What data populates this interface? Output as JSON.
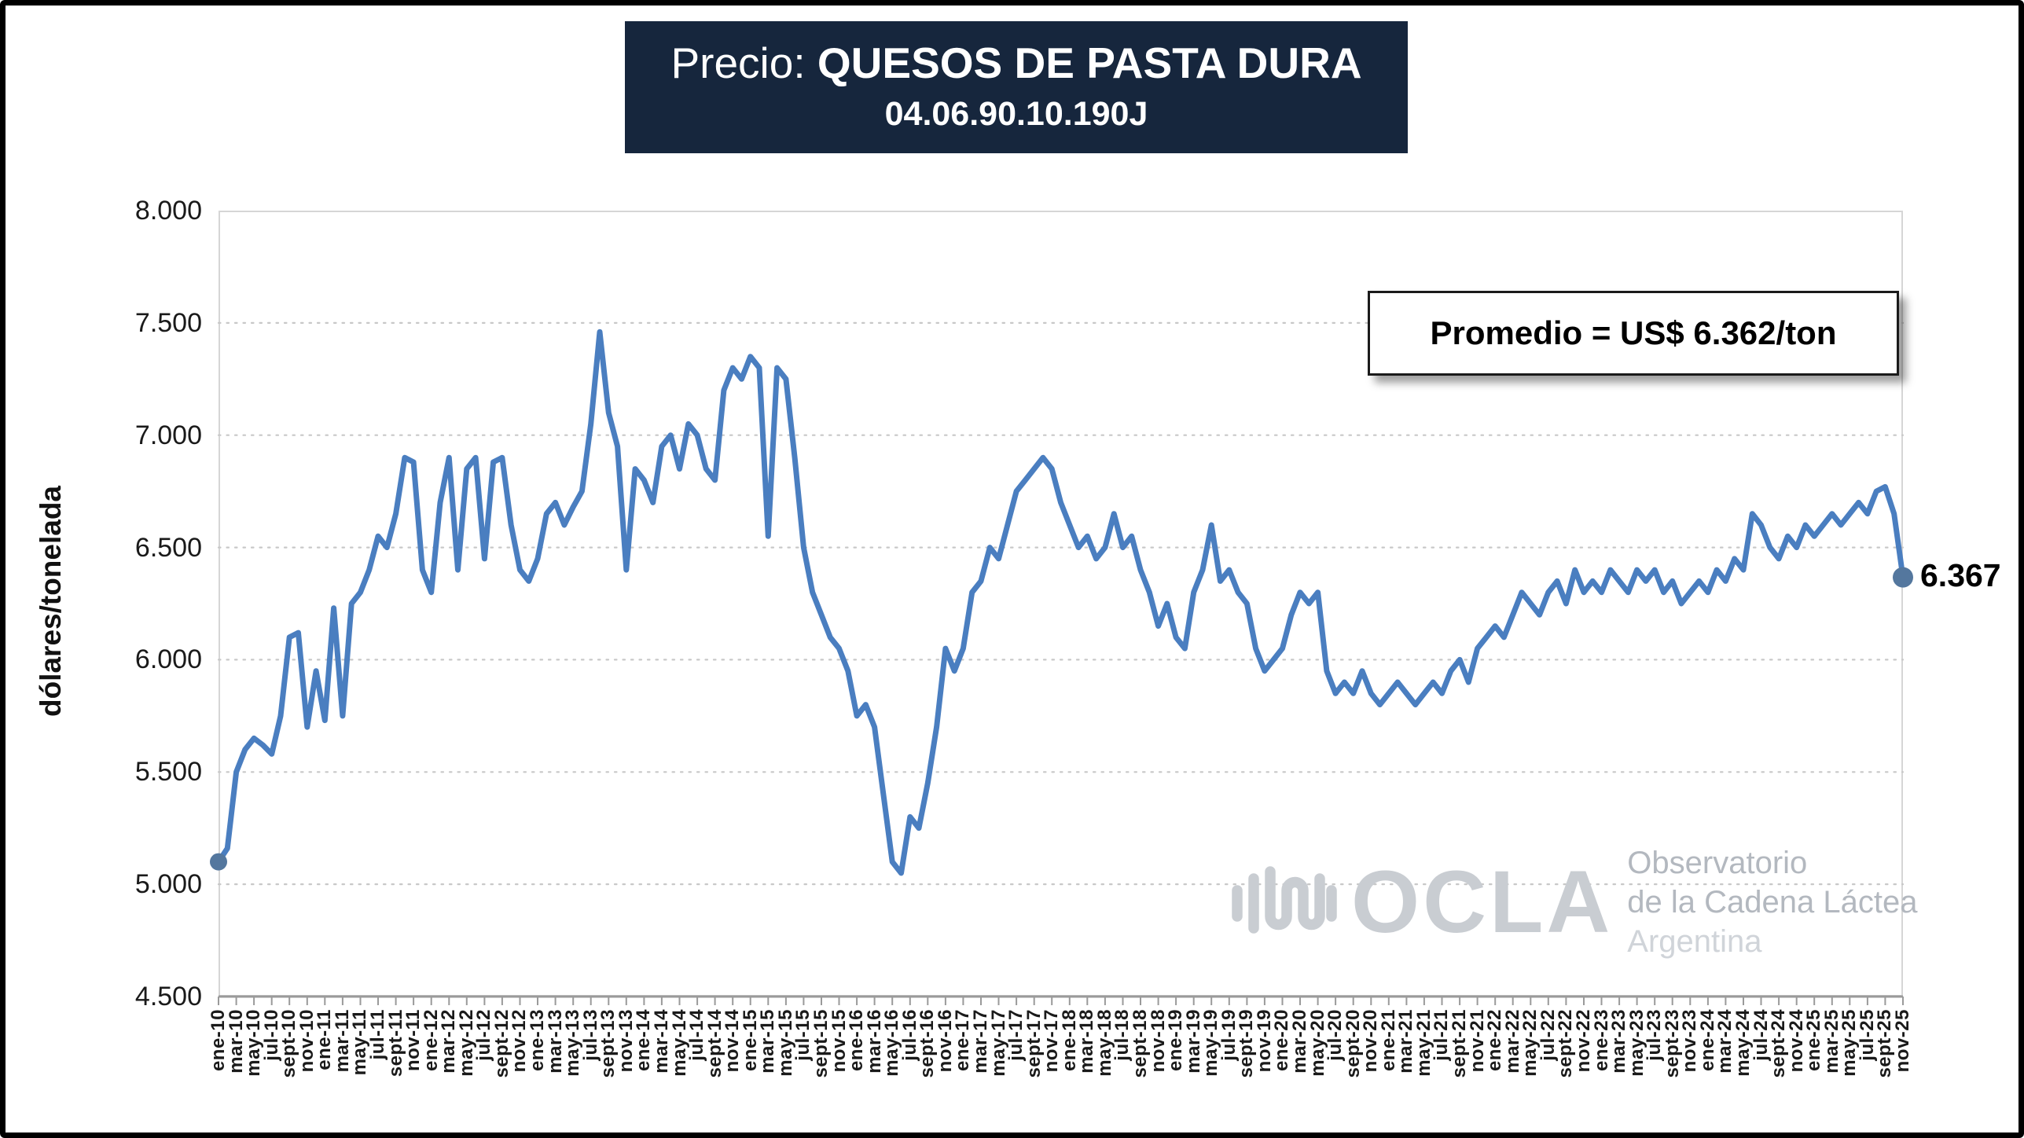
{
  "header": {
    "title_prefix": "Precio: ",
    "title_main": "QUESOS DE PASTA DURA",
    "code": "04.06.90.10.190J"
  },
  "annotation": {
    "promedio": "Promedio = US$ 6.362/ton"
  },
  "watermark": {
    "logo": "OCLA",
    "line1": "Observatorio",
    "line2": "de la Cadena Láctea",
    "line3": "Argentina"
  },
  "colors": {
    "title_bg": "#16263d",
    "line": "#4a7ec0",
    "marker": "#54779e",
    "grid": "#c8c8c8"
  },
  "chart_data": {
    "type": "line",
    "title": "Precio: QUESOS DE PASTA DURA 04.06.90.10.190J",
    "ylabel": "dólares/tonelada",
    "xlabel": "",
    "ylim": [
      4500,
      8000
    ],
    "y_ticks": [
      8000,
      7500,
      7000,
      6500,
      6000,
      5500,
      5000,
      4500
    ],
    "y_tick_labels": [
      "8.000",
      "7.500",
      "7.000",
      "6.500",
      "6.000",
      "5.500",
      "5.000",
      "4.500"
    ],
    "grid": "horizontal-dashed",
    "frequency": "monthly",
    "x_start": "ene-10",
    "x_end": "nov-25",
    "average": 6362,
    "last_value": 6367,
    "last_value_label": "6.367",
    "first_value": 5100,
    "marker_color": "#54779e",
    "x_tick_labels": [
      "ene-10",
      "mar-10",
      "may-10",
      "jul-10",
      "sept-10",
      "nov-10",
      "ene-11",
      "mar-11",
      "may-11",
      "jul-11",
      "sept-11",
      "nov-11",
      "ene-12",
      "mar-12",
      "may-12",
      "jul-12",
      "sept-12",
      "nov-12",
      "ene-13",
      "mar-13",
      "may-13",
      "jul-13",
      "sept-13",
      "nov-13",
      "ene-14",
      "mar-14",
      "may-14",
      "jul-14",
      "sept-14",
      "nov-14",
      "ene-15",
      "mar-15",
      "may-15",
      "jul-15",
      "sept-15",
      "nov-15",
      "ene-16",
      "mar-16",
      "may-16",
      "jul-16",
      "sept-16",
      "nov-16",
      "ene-17",
      "mar-17",
      "may-17",
      "jul-17",
      "sept-17",
      "nov-17",
      "ene-18",
      "mar-18",
      "may-18",
      "jul-18",
      "sept-18",
      "nov-18",
      "ene-19",
      "mar-19",
      "may-19",
      "jul-19",
      "sept-19",
      "nov-19",
      "ene-20",
      "mar-20",
      "may-20",
      "jul-20",
      "sept-20",
      "nov-20",
      "ene-21",
      "mar-21",
      "may-21",
      "jul-21",
      "sept-21",
      "nov-21",
      "ene-22",
      "mar-22",
      "may-22",
      "jul-22",
      "sept-22",
      "nov-22",
      "ene-23",
      "mar-23",
      "may-23",
      "jul-23",
      "sept-23",
      "nov-23",
      "ene-24",
      "mar-24",
      "may-24",
      "jul-24",
      "sept-24",
      "nov-24",
      "ene-25",
      "mar-25",
      "may-25",
      "jul-25",
      "sept-25",
      "nov-25"
    ],
    "series": [
      {
        "name": "Precio quesos de pasta dura (US$/tonelada)",
        "color": "#4a7ec0",
        "values": [
          5100,
          5160,
          5500,
          5600,
          5650,
          5620,
          5580,
          5750,
          6100,
          6120,
          5700,
          5950,
          5730,
          6230,
          5750,
          6250,
          6300,
          6400,
          6550,
          6500,
          6650,
          6900,
          6880,
          6400,
          6300,
          6700,
          6900,
          6400,
          6850,
          6900,
          6450,
          6880,
          6900,
          6600,
          6400,
          6350,
          6450,
          6650,
          6700,
          6600,
          6680,
          6750,
          7050,
          7460,
          7100,
          6950,
          6400,
          6850,
          6800,
          6700,
          6950,
          7000,
          6850,
          7050,
          7000,
          6850,
          6800,
          7200,
          7300,
          7250,
          7350,
          7300,
          6550,
          7300,
          7250,
          6900,
          6500,
          6300,
          6200,
          6100,
          6050,
          5950,
          5750,
          5800,
          5700,
          5400,
          5100,
          5050,
          5300,
          5250,
          5450,
          5700,
          6050,
          5950,
          6050,
          6300,
          6350,
          6500,
          6450,
          6600,
          6750,
          6800,
          6850,
          6900,
          6850,
          6700,
          6600,
          6500,
          6550,
          6450,
          6500,
          6650,
          6500,
          6550,
          6400,
          6300,
          6150,
          6250,
          6100,
          6050,
          6300,
          6400,
          6600,
          6350,
          6400,
          6300,
          6250,
          6050,
          5950,
          6000,
          6050,
          6200,
          6300,
          6250,
          6300,
          5950,
          5850,
          5900,
          5850,
          5950,
          5850,
          5800,
          5850,
          5900,
          5850,
          5800,
          5850,
          5900,
          5850,
          5950,
          6000,
          5900,
          6050,
          6100,
          6150,
          6100,
          6200,
          6300,
          6250,
          6200,
          6300,
          6350,
          6250,
          6400,
          6300,
          6350,
          6300,
          6400,
          6350,
          6300,
          6400,
          6350,
          6400,
          6300,
          6350,
          6250,
          6300,
          6350,
          6300,
          6400,
          6350,
          6450,
          6400,
          6650,
          6600,
          6500,
          6450,
          6550,
          6500,
          6600,
          6550,
          6600,
          6650,
          6600,
          6650,
          6700,
          6650,
          6750,
          6770,
          6650,
          6367
        ]
      }
    ]
  }
}
